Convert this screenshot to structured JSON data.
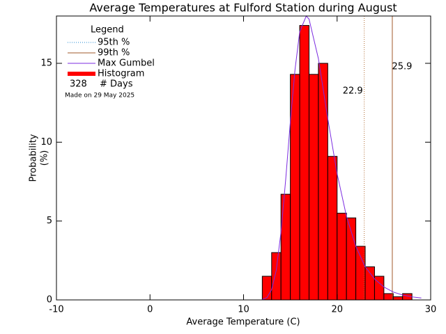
{
  "chart_data": {
    "type": "histogram",
    "title": "Average Temperatures at Fulford Station during August",
    "x_label": "Average Temperature (C)",
    "y_label": [
      "Probability",
      "(%)"
    ],
    "bins": [
      12,
      13,
      14,
      15,
      16,
      17,
      18,
      19,
      20,
      21,
      22,
      23,
      24,
      25,
      26,
      27,
      28
    ],
    "values": [
      1.5,
      3.0,
      6.7,
      14.3,
      17.4,
      14.3,
      15.0,
      9.1,
      5.5,
      5.2,
      3.4,
      2.1,
      1.5,
      0.4,
      0.2,
      0.4
    ],
    "color": "#ff0000",
    "histogram_name": "Histogram",
    "curve": {
      "name": "Max Gumbel",
      "color": "#7b2be0",
      "x": [
        12,
        12.5,
        13,
        13.5,
        14,
        14.5,
        15,
        15.5,
        16,
        16.7,
        17,
        18,
        19,
        20,
        21,
        22,
        23,
        24,
        25,
        26,
        27,
        28,
        29
      ],
      "y": [
        0.02,
        0.15,
        0.65,
        1.9,
        4.3,
        7.6,
        11.3,
        14.6,
        17.0,
        18.0,
        17.8,
        15.3,
        11.5,
        8.0,
        5.3,
        3.4,
        2.1,
        1.33,
        0.82,
        0.5,
        0.31,
        0.19,
        0.12
      ]
    },
    "percentiles": [
      {
        "name": "95th %",
        "value": 22.9,
        "color": "#1f88d0",
        "line_color": "#b06a30",
        "dotted": true
      },
      {
        "name": "99th %",
        "value": 25.9,
        "color": "#a0582a",
        "line_color": "#a0582a",
        "dotted": false
      }
    ],
    "legend_title": "Legend",
    "days": 328,
    "days_label": "# Days",
    "note": "Made on 29 May 2025",
    "xlim": [
      -10,
      30
    ],
    "ylim": [
      0,
      18
    ],
    "xticks": [
      -10,
      0,
      10,
      20,
      30
    ],
    "yticks": [
      0,
      5,
      10,
      15
    ]
  }
}
